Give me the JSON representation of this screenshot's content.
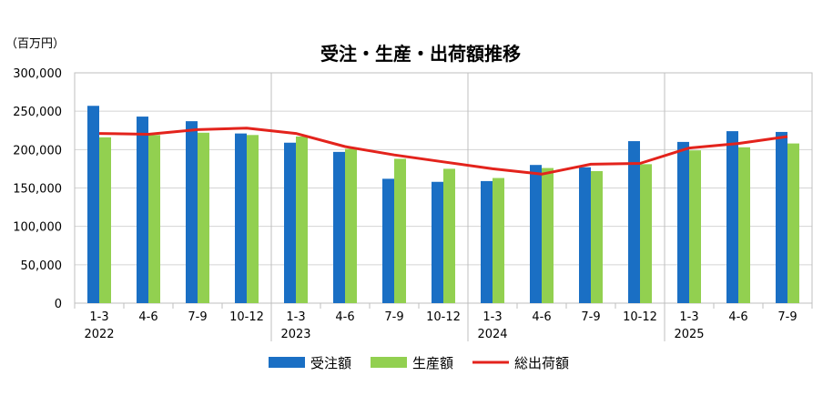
{
  "chart_data": {
    "type": "bar",
    "title": "受注・生産・出荷額推移",
    "unit_label": "（百万円）",
    "ylim": [
      0,
      300000
    ],
    "yticks": [
      0,
      50000,
      100000,
      150000,
      200000,
      250000,
      300000
    ],
    "ytick_labels": [
      "0",
      "50,000",
      "100,000",
      "150,000",
      "200,000",
      "250,000",
      "300,000"
    ],
    "grid": true,
    "legend_position": "bottom",
    "categories": [
      "1-3",
      "4-6",
      "7-9",
      "10-12",
      "1-3",
      "4-6",
      "7-9",
      "10-12",
      "1-3",
      "4-6",
      "7-9",
      "10-12",
      "1-3",
      "4-6",
      "7-9"
    ],
    "year_groups": [
      {
        "label": "2022",
        "start": 0,
        "count": 4
      },
      {
        "label": "2023",
        "start": 4,
        "count": 4
      },
      {
        "label": "2024",
        "start": 8,
        "count": 4
      },
      {
        "label": "2025",
        "start": 12,
        "count": 3
      }
    ],
    "series": [
      {
        "name": "受注額",
        "kind": "bar",
        "color": "#1a6fc4",
        "values": [
          257000,
          243000,
          237000,
          221000,
          209000,
          197000,
          162000,
          158000,
          159000,
          180000,
          177000,
          211000,
          210000,
          224000,
          223000
        ]
      },
      {
        "name": "生産額",
        "kind": "bar",
        "color": "#92d050",
        "values": [
          216000,
          219000,
          222000,
          219000,
          217000,
          201000,
          188000,
          175000,
          163000,
          176000,
          172000,
          181000,
          199000,
          203000,
          208000
        ]
      },
      {
        "name": "総出荷額",
        "kind": "line",
        "color": "#e3231c",
        "values": [
          221000,
          220000,
          226000,
          228000,
          221000,
          204000,
          193000,
          184000,
          175000,
          168000,
          181000,
          182000,
          202000,
          208000,
          217000
        ]
      }
    ]
  }
}
